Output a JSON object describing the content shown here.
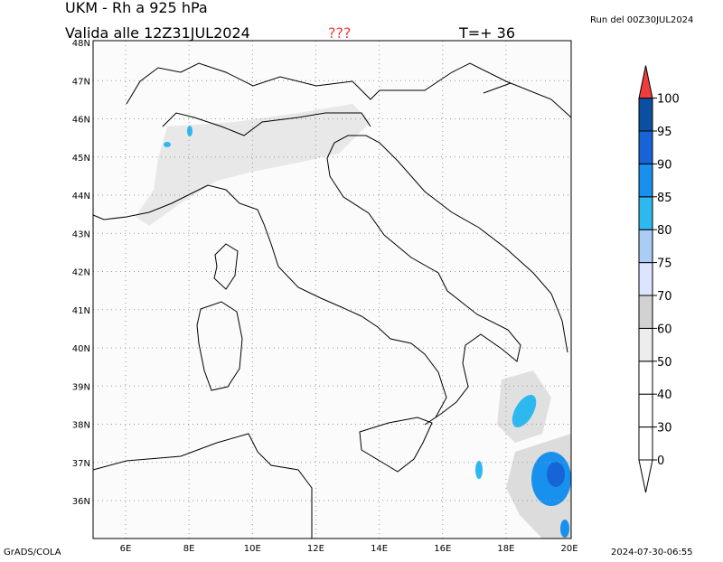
{
  "header": {
    "title": "UKM - Rh a 925 hPa",
    "valid": "Valida alle 12Z31JUL2024",
    "unknown": "???",
    "step": "T=+ 36",
    "run": "Run del 00Z30JUL2024"
  },
  "map": {
    "lat_labels": [
      "48N",
      "47N",
      "46N",
      "45N",
      "44N",
      "43N",
      "42N",
      "41N",
      "40N",
      "39N",
      "38N",
      "37N",
      "36N"
    ],
    "lon_labels": [
      "6E",
      "8E",
      "10E",
      "12E",
      "14E",
      "16E",
      "18E",
      "20E"
    ]
  },
  "colorbar": {
    "labels": [
      "0",
      "30",
      "40",
      "50",
      "60",
      "70",
      "75",
      "80",
      "85",
      "90",
      "95",
      "100"
    ],
    "colors": [
      "#ffffff",
      "#ffffff",
      "#ffffff",
      "#ededed",
      "#d2d2d2",
      "#dce4ff",
      "#aacdf5",
      "#2eb8f0",
      "#1891ee",
      "#1763d8",
      "#0b4fa0",
      "#f03c3c"
    ]
  },
  "footer": {
    "left": "GrADS/COLA",
    "right": "2024-07-30-06:55"
  }
}
